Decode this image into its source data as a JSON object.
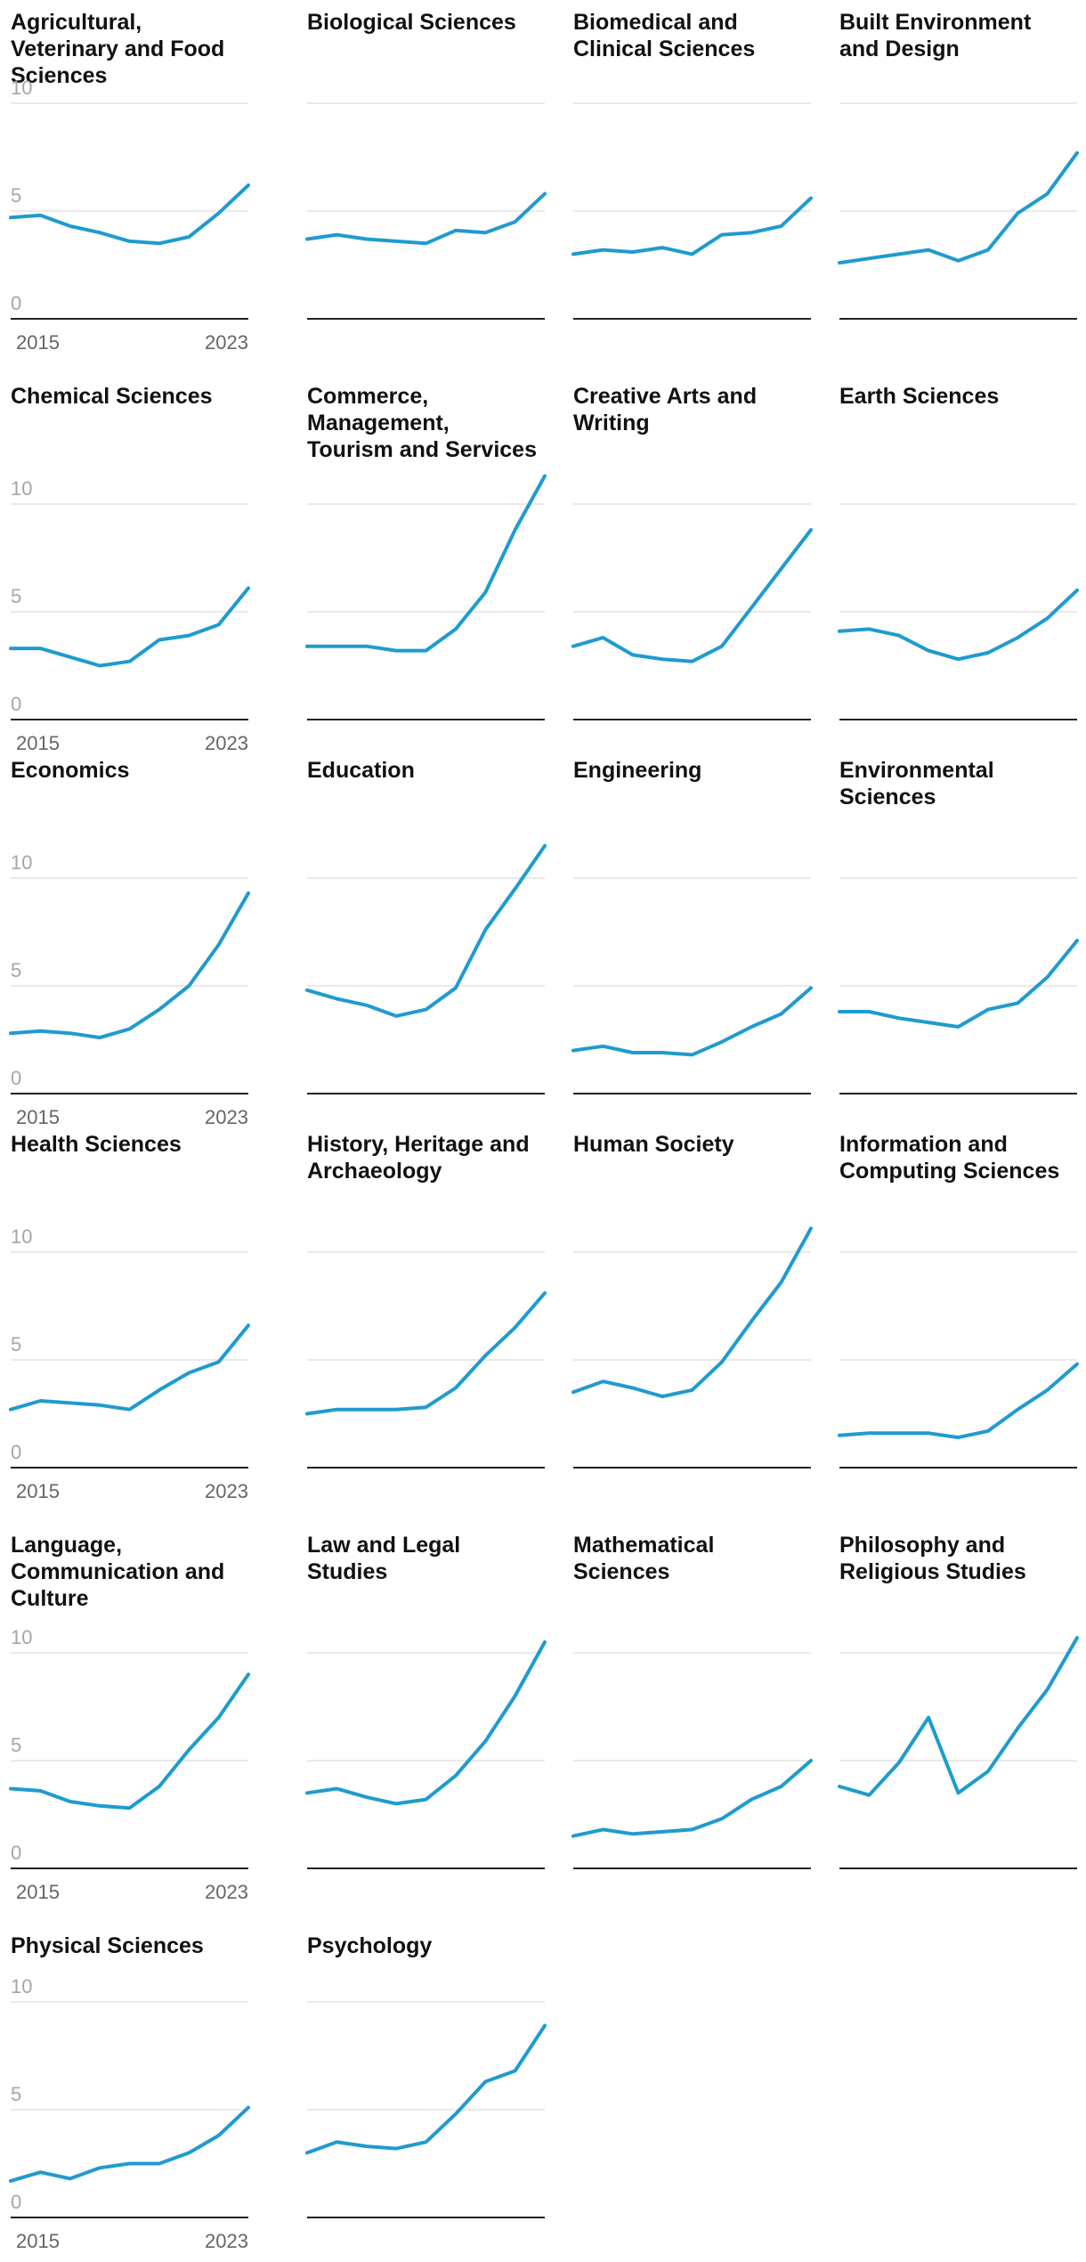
{
  "chart_data": {
    "type": "line",
    "layout": "small-multiples",
    "x": [
      2015,
      2016,
      2017,
      2018,
      2019,
      2020,
      2021,
      2022,
      2023
    ],
    "x_tick_labels": [
      "2015",
      "2023"
    ],
    "ylim": [
      0,
      10
    ],
    "y_ticks": [
      0,
      5,
      10
    ],
    "y_tick_labels": [
      "0",
      "5",
      "10"
    ],
    "grid": true,
    "line_color": "#1f9bcf",
    "panels": [
      {
        "title": "Agricultural, Veterinary and Food Sciences",
        "values": [
          4.7,
          4.8,
          4.3,
          4.0,
          3.6,
          3.5,
          3.8,
          4.9,
          6.2
        ]
      },
      {
        "title": "Biological Sciences",
        "values": [
          3.7,
          3.9,
          3.7,
          3.6,
          3.5,
          4.1,
          4.0,
          4.5,
          5.8
        ]
      },
      {
        "title": "Biomedical and Clinical Sciences",
        "values": [
          3.0,
          3.2,
          3.1,
          3.3,
          3.0,
          3.9,
          4.0,
          4.3,
          5.6
        ]
      },
      {
        "title": "Built Environment and Design",
        "values": [
          2.6,
          2.8,
          3.0,
          3.2,
          2.7,
          3.2,
          4.9,
          5.8,
          7.7
        ]
      },
      {
        "title": "Chemical Sciences",
        "values": [
          3.3,
          3.3,
          2.9,
          2.5,
          2.7,
          3.7,
          3.9,
          4.4,
          6.1
        ]
      },
      {
        "title": "Commerce, Management, Tourism and Services",
        "values": [
          3.4,
          3.4,
          3.4,
          3.2,
          3.2,
          4.2,
          5.9,
          8.8,
          11.3
        ]
      },
      {
        "title": "Creative Arts and Writing",
        "values": [
          3.4,
          3.8,
          3.0,
          2.8,
          2.7,
          3.4,
          5.2,
          7.0,
          8.8
        ]
      },
      {
        "title": "Earth Sciences",
        "values": [
          4.1,
          4.2,
          3.9,
          3.2,
          2.8,
          3.1,
          3.8,
          4.7,
          6.0
        ]
      },
      {
        "title": "Economics",
        "values": [
          2.8,
          2.9,
          2.8,
          2.6,
          3.0,
          3.9,
          5.0,
          6.9,
          9.3
        ]
      },
      {
        "title": "Education",
        "values": [
          4.8,
          4.4,
          4.1,
          3.6,
          3.9,
          4.9,
          7.6,
          9.5,
          11.5
        ]
      },
      {
        "title": "Engineering",
        "values": [
          2.0,
          2.2,
          1.9,
          1.9,
          1.8,
          2.4,
          3.1,
          3.7,
          4.9
        ]
      },
      {
        "title": "Environmental Sciences",
        "values": [
          3.8,
          3.8,
          3.5,
          3.3,
          3.1,
          3.9,
          4.2,
          5.4,
          7.1
        ]
      },
      {
        "title": "Health Sciences",
        "values": [
          2.7,
          3.1,
          3.0,
          2.9,
          2.7,
          3.6,
          4.4,
          4.9,
          6.6
        ]
      },
      {
        "title": "History, Heritage and Archaeology",
        "values": [
          2.5,
          2.7,
          2.7,
          2.7,
          2.8,
          3.7,
          5.2,
          6.5,
          8.1
        ]
      },
      {
        "title": "Human Society",
        "values": [
          3.5,
          4.0,
          3.7,
          3.3,
          3.6,
          4.9,
          6.8,
          8.6,
          11.1
        ]
      },
      {
        "title": "Information and Computing Sciences",
        "values": [
          1.5,
          1.6,
          1.6,
          1.6,
          1.4,
          1.7,
          2.7,
          3.6,
          4.8
        ]
      },
      {
        "title": "Language, Communication and Culture",
        "values": [
          3.7,
          3.6,
          3.1,
          2.9,
          2.8,
          3.8,
          5.5,
          7.0,
          9.0
        ]
      },
      {
        "title": "Law and Legal Studies",
        "values": [
          3.5,
          3.7,
          3.3,
          3.0,
          3.2,
          4.3,
          5.9,
          8.0,
          10.5
        ]
      },
      {
        "title": "Mathematical Sciences",
        "values": [
          1.5,
          1.8,
          1.6,
          1.7,
          1.8,
          2.3,
          3.2,
          3.8,
          5.0
        ]
      },
      {
        "title": "Philosophy and Religious Studies",
        "values": [
          3.8,
          3.4,
          4.9,
          7.0,
          3.5,
          4.5,
          6.5,
          8.3,
          10.7
        ]
      },
      {
        "title": "Physical Sciences",
        "values": [
          1.7,
          2.1,
          1.8,
          2.3,
          2.5,
          2.5,
          3.0,
          3.8,
          5.1
        ]
      },
      {
        "title": "Psychology",
        "values": [
          3.0,
          3.5,
          3.3,
          3.2,
          3.5,
          4.8,
          6.3,
          6.8,
          8.9
        ]
      }
    ]
  }
}
